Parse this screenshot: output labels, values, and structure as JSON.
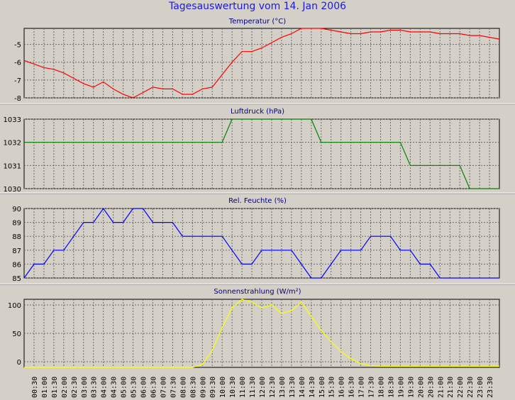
{
  "title": "Tagesauswertung vom 14. Jan 2006",
  "x_labels": [
    "00:30",
    "01:00",
    "01:30",
    "02:00",
    "02:30",
    "03:00",
    "03:30",
    "04:00",
    "04:30",
    "05:00",
    "05:30",
    "06:00",
    "06:30",
    "07:00",
    "07:30",
    "08:00",
    "08:30",
    "09:00",
    "09:30",
    "10:00",
    "10:30",
    "11:00",
    "11:30",
    "12:00",
    "12:30",
    "13:00",
    "13:30",
    "14:00",
    "14:30",
    "15:00",
    "15:30",
    "16:00",
    "16:30",
    "17:00",
    "17:30",
    "18:00",
    "18:30",
    "19:00",
    "19:30",
    "20:00",
    "20:30",
    "21:00",
    "21:30",
    "22:00",
    "22:30",
    "23:00",
    "23:30"
  ],
  "chart_data": [
    {
      "type": "line",
      "title": "Temperatur (°C)",
      "color": "#ff0000",
      "ylim": [
        -8,
        -4.1
      ],
      "yticks": [
        -8,
        -7,
        -6,
        -5
      ],
      "x": [
        "00:00",
        "00:30",
        "01:00",
        "01:30",
        "02:00",
        "02:30",
        "03:00",
        "03:30",
        "04:00",
        "04:30",
        "05:00",
        "05:30",
        "06:00",
        "06:30",
        "07:00",
        "07:30",
        "08:00",
        "08:30",
        "09:00",
        "09:30",
        "10:00",
        "10:30",
        "11:00",
        "11:30",
        "12:00",
        "12:30",
        "13:00",
        "13:30",
        "14:00",
        "14:30",
        "15:00",
        "15:30",
        "16:00",
        "16:30",
        "17:00",
        "17:30",
        "18:00",
        "18:30",
        "19:00",
        "19:30",
        "20:00",
        "20:30",
        "21:00",
        "21:30",
        "22:00",
        "22:30",
        "23:00",
        "23:30",
        "24:00"
      ],
      "values": [
        -5.9,
        -6.1,
        -6.3,
        -6.4,
        -6.6,
        -6.9,
        -7.2,
        -7.4,
        -7.1,
        -7.5,
        -7.8,
        -8.0,
        -7.7,
        -7.4,
        -7.5,
        -7.5,
        -7.8,
        -7.8,
        -7.5,
        -7.4,
        -6.7,
        -6.0,
        -5.4,
        -5.4,
        -5.2,
        -4.9,
        -4.6,
        -4.4,
        -4.1,
        -4.1,
        -4.1,
        -4.2,
        -4.3,
        -4.4,
        -4.4,
        -4.3,
        -4.3,
        -4.2,
        -4.2,
        -4.3,
        -4.3,
        -4.3,
        -4.4,
        -4.4,
        -4.4,
        -4.5,
        -4.5,
        -4.6,
        -4.7
      ]
    },
    {
      "type": "line",
      "title": "Luftdruck (hPa)",
      "color": "#008000",
      "ylim": [
        1030,
        1033
      ],
      "yticks": [
        1030,
        1031,
        1032,
        1033
      ],
      "x": [
        "00:00",
        "10:00",
        "10:30",
        "14:30",
        "15:00",
        "19:00",
        "19:30",
        "22:00",
        "22:30",
        "24:00"
      ],
      "values": [
        1032,
        1032,
        1033,
        1033,
        1032,
        1032,
        1031,
        1031,
        1030,
        1030
      ]
    },
    {
      "type": "line",
      "title": "Rel. Feuchte (%)",
      "color": "#0000ff",
      "ylim": [
        85,
        90
      ],
      "yticks": [
        85,
        86,
        87,
        88,
        89,
        90
      ],
      "x": [
        "00:00",
        "00:30",
        "01:00",
        "01:30",
        "02:00",
        "02:30",
        "03:00",
        "03:30",
        "04:00",
        "04:30",
        "05:00",
        "05:30",
        "06:00",
        "06:30",
        "07:00",
        "07:30",
        "08:00",
        "08:30",
        "09:00",
        "09:30",
        "10:00",
        "10:30",
        "11:00",
        "11:30",
        "12:00",
        "12:30",
        "13:00",
        "13:30",
        "14:00",
        "14:30",
        "15:00",
        "15:30",
        "16:00",
        "16:30",
        "17:00",
        "17:30",
        "18:00",
        "18:30",
        "19:00",
        "19:30",
        "20:00",
        "20:30",
        "21:00",
        "21:30",
        "22:00",
        "22:30",
        "23:00",
        "23:30",
        "24:00"
      ],
      "values": [
        85,
        86,
        86,
        87,
        87,
        88,
        89,
        89,
        90,
        89,
        89,
        90,
        90,
        89,
        89,
        89,
        88,
        88,
        88,
        88,
        88,
        87,
        86,
        86,
        87,
        87,
        87,
        87,
        86,
        85,
        85,
        86,
        87,
        87,
        87,
        88,
        88,
        88,
        87,
        87,
        86,
        86,
        85,
        85,
        85,
        85,
        85,
        85,
        85
      ]
    },
    {
      "type": "line",
      "title": "Sonnenstrahlung (W/m²)",
      "color": "#ffff00",
      "ylim": [
        -10,
        110
      ],
      "yticks": [
        0,
        50,
        100
      ],
      "x": [
        "00:00",
        "00:30",
        "01:00",
        "01:30",
        "02:00",
        "02:30",
        "03:00",
        "03:30",
        "04:00",
        "04:30",
        "05:00",
        "05:30",
        "06:00",
        "06:30",
        "07:00",
        "07:30",
        "08:00",
        "08:30",
        "09:00",
        "09:30",
        "10:00",
        "10:30",
        "11:00",
        "11:30",
        "12:00",
        "12:30",
        "13:00",
        "13:30",
        "14:00",
        "14:30",
        "15:00",
        "15:30",
        "16:00",
        "16:30",
        "17:00",
        "17:30",
        "18:00",
        "18:30",
        "19:00",
        "19:30",
        "20:00",
        "20:30",
        "21:00",
        "21:30",
        "22:00",
        "22:30",
        "23:00",
        "23:30",
        "24:00"
      ],
      "values": [
        -10,
        -10,
        -10,
        -10,
        -10,
        -10,
        -10,
        -10,
        -10,
        -10,
        -10,
        -10,
        -10,
        -10,
        -10,
        -10,
        -10,
        -10,
        -5,
        20,
        60,
        95,
        110,
        105,
        95,
        100,
        85,
        90,
        105,
        80,
        55,
        35,
        18,
        5,
        -3,
        -7,
        -8,
        -8,
        -8,
        -8,
        -8,
        -8,
        -8,
        -8,
        -8,
        -8,
        -8,
        -8,
        -8
      ]
    }
  ]
}
